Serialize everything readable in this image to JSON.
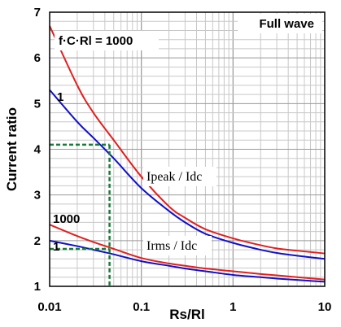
{
  "chart_data": {
    "type": "line",
    "x_scale": "log",
    "xlim": [
      0.01,
      10
    ],
    "ylim": [
      1,
      7
    ],
    "xlabel": "Rs/Rl",
    "ylabel": "Current ratio",
    "x_ticks": [
      "0.01",
      "0.1",
      "1",
      "10"
    ],
    "y_ticks": [
      "1",
      "2",
      "3",
      "4",
      "5",
      "6",
      "7"
    ],
    "grid": true,
    "annotations": {
      "mode": "Full wave",
      "parameter": "f·C·Rl = 1000",
      "peak_curve_label_high": "1",
      "rms_curve_label_high": "1000",
      "rms_curve_label_low": "1",
      "peak_ratio_label": "Ipeak / Idc",
      "rms_ratio_label": "Irms / Idc"
    },
    "colors": {
      "param_1000": "#e02020",
      "param_1": "#1010c8",
      "guide": "#1a7a3a"
    },
    "series": [
      {
        "name": "1000",
        "group": "peak",
        "color": "#e02020",
        "x": [
          0.01,
          0.02,
          0.03,
          0.05,
          0.1,
          0.2,
          0.3,
          0.5,
          1,
          2,
          3,
          5,
          10
        ],
        "y": [
          6.7,
          5.4,
          4.8,
          4.2,
          3.4,
          2.75,
          2.5,
          2.25,
          2.05,
          1.9,
          1.83,
          1.78,
          1.72
        ]
      },
      {
        "name": "1",
        "group": "peak",
        "color": "#1010c8",
        "x": [
          0.01,
          0.02,
          0.03,
          0.05,
          0.1,
          0.2,
          0.3,
          0.5,
          1,
          2,
          3,
          5,
          10
        ],
        "y": [
          5.3,
          4.6,
          4.25,
          3.8,
          3.15,
          2.65,
          2.4,
          2.15,
          1.95,
          1.8,
          1.73,
          1.67,
          1.6
        ]
      },
      {
        "name": "1000",
        "group": "rms",
        "color": "#e02020",
        "x": [
          0.01,
          0.02,
          0.03,
          0.05,
          0.1,
          0.2,
          0.3,
          0.5,
          1,
          2,
          3,
          5,
          10
        ],
        "y": [
          2.35,
          2.1,
          1.97,
          1.82,
          1.62,
          1.5,
          1.45,
          1.39,
          1.33,
          1.27,
          1.24,
          1.2,
          1.15
        ]
      },
      {
        "name": "1",
        "group": "rms",
        "color": "#1010c8",
        "x": [
          0.01,
          0.02,
          0.03,
          0.05,
          0.1,
          0.2,
          0.3,
          0.5,
          1,
          2,
          3,
          5,
          10
        ],
        "y": [
          2.0,
          1.88,
          1.8,
          1.7,
          1.55,
          1.45,
          1.39,
          1.33,
          1.25,
          1.2,
          1.17,
          1.14,
          1.1
        ]
      }
    ],
    "guides": [
      {
        "x": 0.045,
        "y_peak": 4.1,
        "y_rms": 1.82
      }
    ]
  }
}
